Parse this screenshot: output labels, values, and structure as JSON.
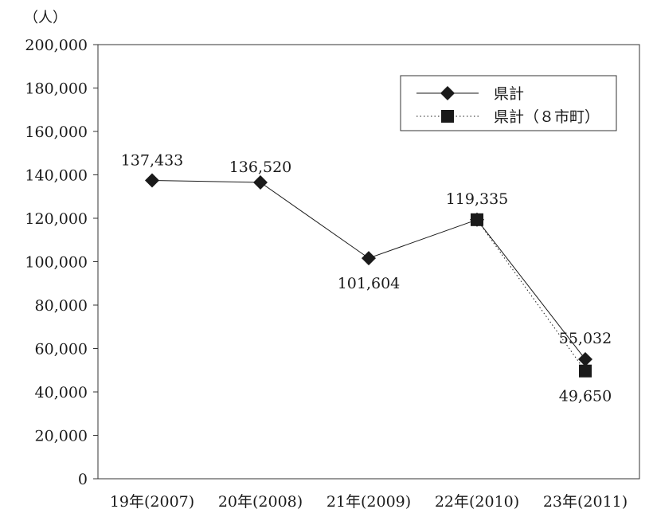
{
  "chart_data": {
    "type": "line",
    "ylabel_unit": "（人）",
    "ylim": [
      0,
      200000
    ],
    "y_ticks": [
      "0",
      "20,000",
      "40,000",
      "60,000",
      "80,000",
      "100,000",
      "120,000",
      "140,000",
      "160,000",
      "180,000",
      "200,000"
    ],
    "y_tick_values": [
      0,
      20000,
      40000,
      60000,
      80000,
      100000,
      120000,
      140000,
      160000,
      180000,
      200000
    ],
    "categories": [
      "19年(2007)",
      "20年(2008)",
      "21年(2009)",
      "22年(2010)",
      "23年(2011)"
    ],
    "grid": false,
    "legend_position": "top-right",
    "series": [
      {
        "name": "県計",
        "marker": "diamond",
        "line_style": "solid",
        "color": "#1a1a1a",
        "values": [
          137433,
          136520,
          101604,
          119335,
          55032
        ],
        "labels": [
          "137,433",
          "136,520",
          "101,604",
          "119,335",
          "55,032"
        ]
      },
      {
        "name": "県計（８市町）",
        "marker": "square",
        "line_style": "dotted",
        "color": "#1a1a1a",
        "values": [
          null,
          null,
          null,
          119335,
          49650
        ],
        "labels": [
          null,
          null,
          null,
          null,
          "49,650"
        ]
      }
    ]
  }
}
